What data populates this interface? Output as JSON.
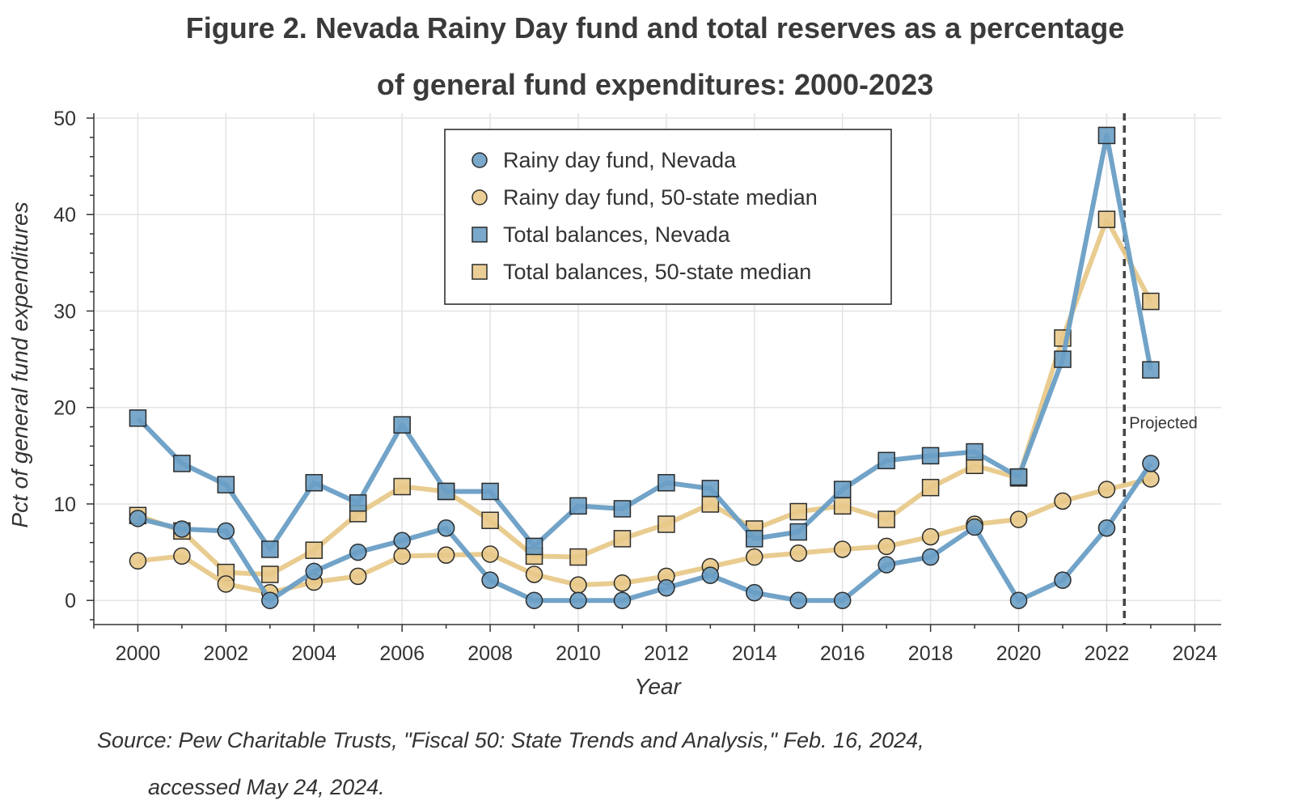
{
  "title_line1": "Figure 2. Nevada Rainy Day fund and total reserves as a percentage",
  "title_line2": "of general fund expenditures: 2000-2023",
  "source_line1": "Source: Pew Charitable Trusts, \"Fiscal 50: State Trends and Analysis,\" Feb. 16, 2024,",
  "source_line2": "accessed May 24, 2024.",
  "colors": {
    "nevada": "#6a9ec5",
    "median": "#e8c98a",
    "marker_edge": "#2b2b2b",
    "grid": "#e3e3e3",
    "vline": "#444444"
  },
  "chart_data": {
    "type": "line",
    "xlabel": "Year",
    "ylabel": "Pct of general fund expenditures",
    "xlim": [
      1999,
      2024.6
    ],
    "ylim": [
      -2.5,
      50.5
    ],
    "xticks": [
      2000,
      2002,
      2004,
      2006,
      2008,
      2010,
      2012,
      2014,
      2016,
      2018,
      2020,
      2022,
      2024
    ],
    "yticks": [
      0,
      10,
      20,
      30,
      40,
      50
    ],
    "grid": true,
    "legend_position": "top-center",
    "x": [
      2000,
      2001,
      2002,
      2003,
      2004,
      2005,
      2006,
      2007,
      2008,
      2009,
      2010,
      2011,
      2012,
      2013,
      2014,
      2015,
      2016,
      2017,
      2018,
      2019,
      2020,
      2021,
      2022,
      2023
    ],
    "series": [
      {
        "name": "Total balances, 50-state median",
        "marker": "square",
        "color_key": "median",
        "values": [
          8.8,
          7.2,
          2.9,
          2.7,
          5.2,
          9.0,
          11.8,
          11.3,
          8.3,
          4.6,
          4.5,
          6.4,
          7.9,
          10.0,
          7.4,
          9.2,
          9.8,
          8.4,
          11.7,
          14.0,
          12.7,
          27.2,
          39.5,
          31.0
        ]
      },
      {
        "name": "Rainy day fund, 50-state median",
        "marker": "circle",
        "color_key": "median",
        "values": [
          4.1,
          4.6,
          1.7,
          0.8,
          1.9,
          2.5,
          4.6,
          4.7,
          4.8,
          2.7,
          1.6,
          1.8,
          2.5,
          3.5,
          4.5,
          4.9,
          5.3,
          5.6,
          6.6,
          7.9,
          8.4,
          10.3,
          11.5,
          12.6
        ]
      },
      {
        "name": "Total balances, Nevada",
        "marker": "square",
        "color_key": "nevada",
        "values": [
          18.9,
          14.2,
          12.0,
          5.3,
          12.2,
          10.1,
          18.2,
          11.3,
          11.3,
          5.6,
          9.8,
          9.5,
          12.2,
          11.6,
          6.4,
          7.1,
          11.5,
          14.5,
          15.0,
          15.4,
          12.8,
          25.0,
          48.2,
          23.9
        ]
      },
      {
        "name": "Rainy day fund, Nevada",
        "marker": "circle",
        "color_key": "nevada",
        "values": [
          8.5,
          7.4,
          7.2,
          0.0,
          3.0,
          5.0,
          6.2,
          7.5,
          2.1,
          0.0,
          0.0,
          0.0,
          1.3,
          2.6,
          0.8,
          0.0,
          0.0,
          3.7,
          4.5,
          7.6,
          0.0,
          2.1,
          7.5,
          14.2
        ]
      }
    ],
    "legend_order": [
      "Rainy day fund, Nevada",
      "Rainy day fund, 50-state median",
      "Total balances, Nevada",
      "Total balances, 50-state median"
    ],
    "vline": {
      "x": 2022.4,
      "style": "dashed",
      "label": "Projected"
    }
  }
}
